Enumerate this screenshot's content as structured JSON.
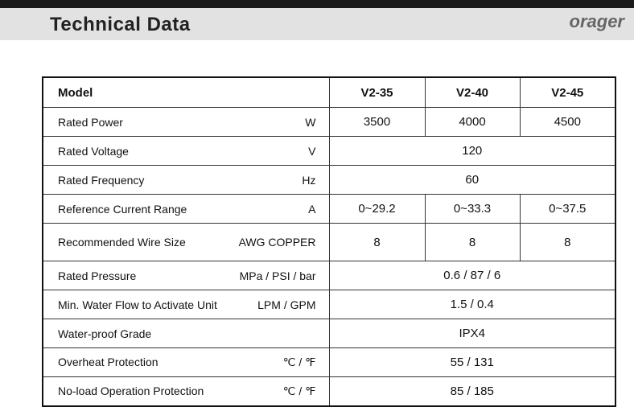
{
  "header": {
    "title": "Technical Data",
    "logo": "orager"
  },
  "table": {
    "columns": [
      "Model",
      "V2-35",
      "V2-40",
      "V2-45"
    ],
    "rows": [
      {
        "label": "Rated Power",
        "unit": "W",
        "values": [
          "3500",
          "4000",
          "4500"
        ]
      },
      {
        "label": "Rated Voltage",
        "unit": "V",
        "values": [
          "120"
        ]
      },
      {
        "label": "Rated Frequency",
        "unit": "Hz",
        "values": [
          "60"
        ]
      },
      {
        "label": "Reference Current Range",
        "unit": "A",
        "values": [
          "0~29.2",
          "0~33.3",
          "0~37.5"
        ]
      },
      {
        "label": "Recommended Wire Size",
        "unit": "AWG COPPER",
        "values": [
          "8",
          "8",
          "8"
        ]
      },
      {
        "label": "Rated Pressure",
        "unit": "MPa / PSI / bar",
        "values": [
          "0.6 / 87 / 6"
        ]
      },
      {
        "label": "Min. Water Flow to Activate Unit",
        "unit": "LPM / GPM",
        "values": [
          "1.5 / 0.4"
        ]
      },
      {
        "label": "Water-proof Grade",
        "values": [
          "IPX4"
        ]
      },
      {
        "label": "Overheat Protection",
        "unit": "℃ / ℉",
        "values": [
          "55 / 131"
        ]
      },
      {
        "label": "No-load Operation Protection",
        "unit": "℃ / ℉",
        "values": [
          "85 / 185"
        ]
      }
    ]
  }
}
